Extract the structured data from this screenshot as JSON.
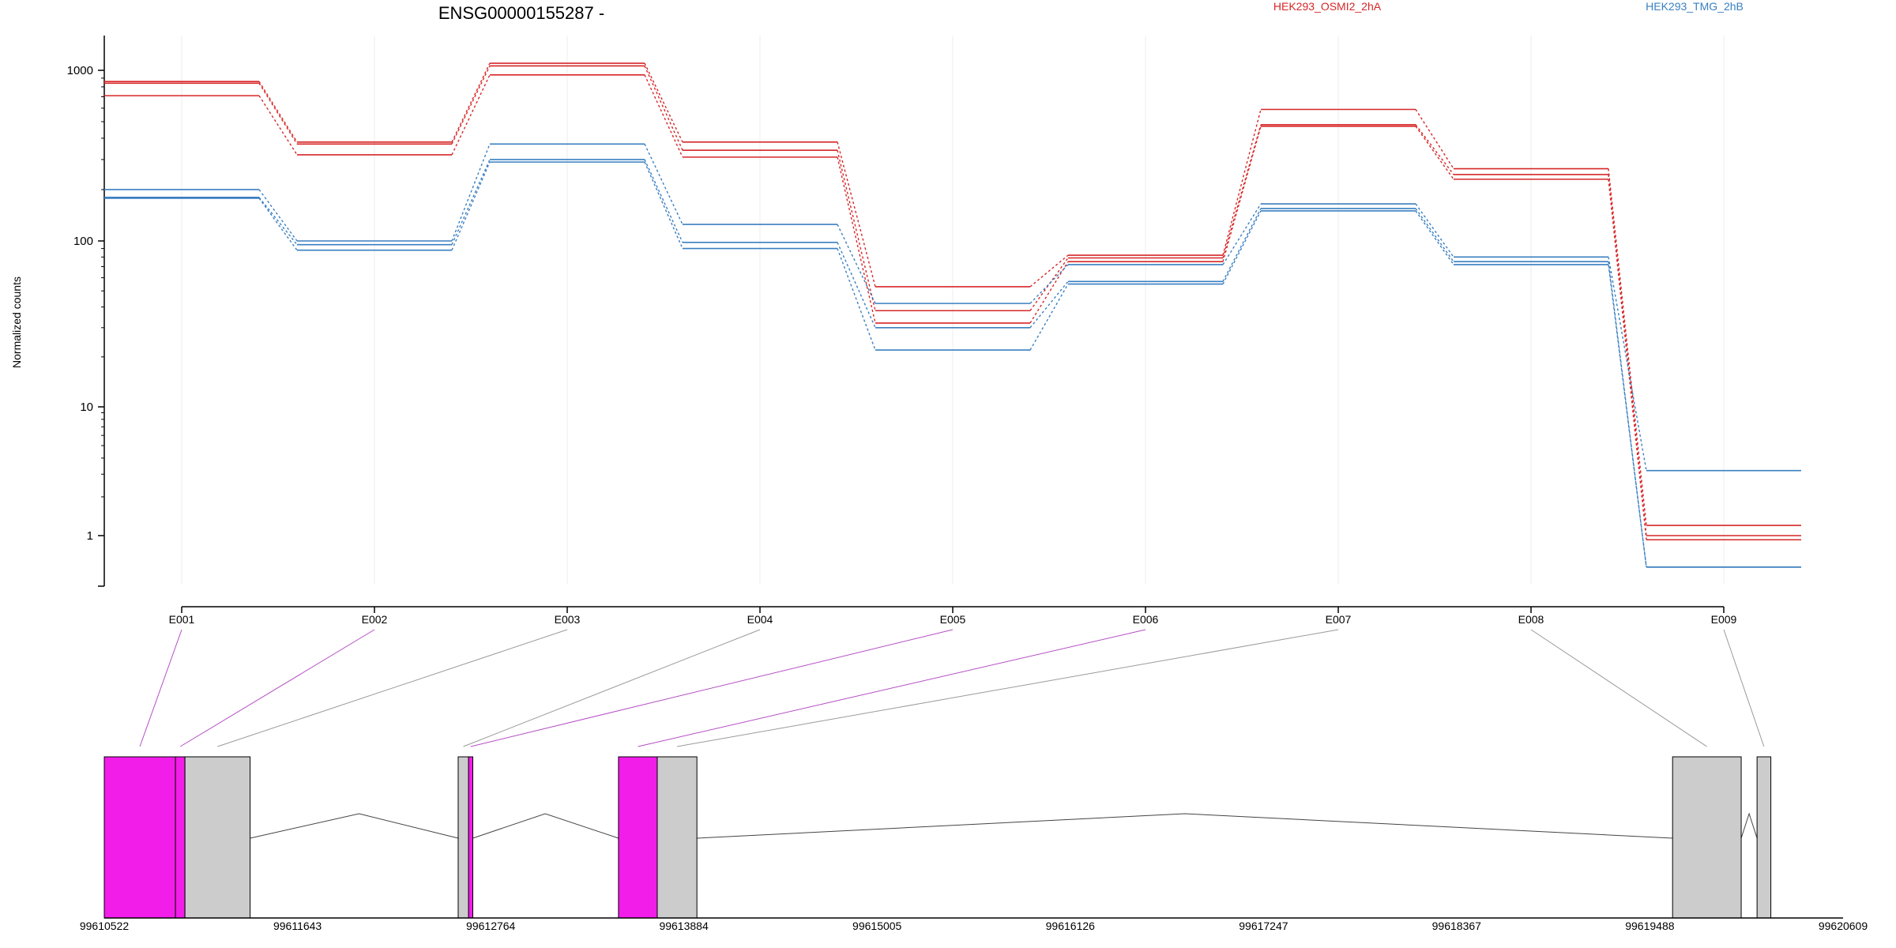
{
  "chart_data": {
    "type": "line",
    "title": "ENSG00000155287 -",
    "ylabel": "Normalized counts",
    "yscale": "log",
    "grid": true,
    "legend_position": "top",
    "categories": [
      "E001",
      "E002",
      "E003",
      "E004",
      "E005",
      "E006",
      "E007",
      "E008",
      "E009"
    ],
    "yticks": [
      {
        "label": "1",
        "value": 1
      },
      {
        "label": "10",
        "value": 10
      },
      {
        "label": "100",
        "value": 100
      },
      {
        "label": "1000",
        "value": 1000
      }
    ],
    "series": [
      {
        "name": "HEK293_OSMI2_2hA",
        "group": "osmi",
        "values": [
          860,
          380,
          1200,
          380,
          53,
          82,
          590,
          265,
          1.2
        ]
      },
      {
        "name": "",
        "group": "osmi",
        "values": [
          840,
          370,
          1120,
          340,
          38,
          79,
          480,
          245,
          1.0
        ]
      },
      {
        "name": "",
        "group": "osmi",
        "values": [
          710,
          320,
          940,
          310,
          32,
          75,
          470,
          230,
          0.9
        ]
      },
      {
        "name": "HEK293_TMG_2hB",
        "group": "tmg",
        "values": [
          200,
          100,
          370,
          125,
          42,
          72,
          165,
          80,
          3.2
        ]
      },
      {
        "name": "",
        "group": "tmg",
        "values": [
          180,
          95,
          300,
          98,
          30,
          57,
          155,
          75,
          0.45
        ]
      },
      {
        "name": "",
        "group": "tmg",
        "values": [
          178,
          88,
          290,
          90,
          22,
          55,
          150,
          72,
          0.45
        ]
      }
    ],
    "colors": {
      "osmi": "#d62728",
      "tmg": "#3a7fc1",
      "highlight": "#f21de9",
      "exon": "#cccccc",
      "connector_highlight": "#b44fc4",
      "connector": "#9a9a9a"
    },
    "gene_model": {
      "axis_ticks": [
        "99610522",
        "99611643",
        "99612764",
        "99613884",
        "99615005",
        "99616126",
        "99617247",
        "99618367",
        "99619488",
        "99620609"
      ],
      "range": [
        99610522,
        99620609
      ],
      "exons": [
        {
          "id": "E001",
          "start": 99610522,
          "end": 99610935,
          "highlighted": true
        },
        {
          "id": "E002",
          "start": 99610935,
          "end": 99610990,
          "highlighted": true
        },
        {
          "id": "E003",
          "start": 99610990,
          "end": 99611368,
          "highlighted": false
        },
        {
          "id": "E004",
          "start": 99612575,
          "end": 99612635,
          "highlighted": false
        },
        {
          "id": "E005",
          "start": 99612635,
          "end": 99612660,
          "highlighted": true
        },
        {
          "id": "E006",
          "start": 99613505,
          "end": 99613730,
          "highlighted": true
        },
        {
          "id": "E007",
          "start": 99613730,
          "end": 99613960,
          "highlighted": false
        },
        {
          "id": "E008",
          "start": 99619620,
          "end": 99620018,
          "highlighted": false
        },
        {
          "id": "E009",
          "start": 99620110,
          "end": 99620190,
          "highlighted": false
        }
      ]
    }
  }
}
